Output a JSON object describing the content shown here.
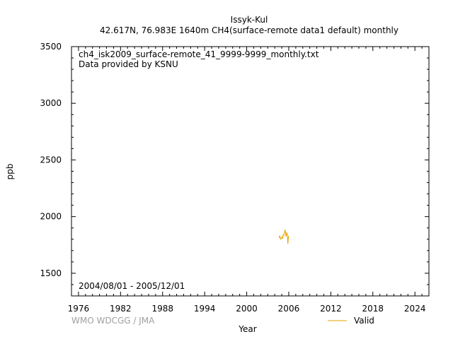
{
  "chart_data": {
    "type": "line",
    "title": "Issyk-Kul",
    "subtitle": "42.617N, 76.983E 1640m    CH4(surface-remote data1 default) monthly",
    "xlabel": "Year",
    "ylabel": "ppb",
    "xlim": [
      1975,
      2026
    ],
    "ylim": [
      1300,
      3500
    ],
    "x_ticks": [
      1976,
      1982,
      1988,
      1994,
      2000,
      2006,
      2012,
      2018,
      2024
    ],
    "y_ticks": [
      1500,
      2000,
      2500,
      3000,
      3500
    ],
    "annotations": {
      "filename": "ch4_isk2009_surface-remote_41_9999-9999_monthly.txt",
      "provider": "Data provided by KSNU",
      "period": "2004/08/01 - 2005/12/01",
      "credit": "WMO WDCGG / JMA"
    },
    "legend_position": "bottom-right",
    "grid": false,
    "series": [
      {
        "name": "Valid",
        "color": "#e6a000",
        "x": [
          2004.625,
          2004.708,
          2004.792,
          2004.875,
          2004.958,
          2005.042,
          2005.125,
          2005.208,
          2005.292,
          2005.375,
          2005.458,
          2005.542,
          2005.625,
          2005.708,
          2005.792,
          2005.875,
          2005.958
        ],
        "y": [
          1810,
          1830,
          1815,
          1800,
          1812,
          1820,
          1805,
          1840,
          1835,
          1850,
          1885,
          1860,
          1825,
          1860,
          1840,
          1760,
          1830
        ]
      }
    ]
  }
}
